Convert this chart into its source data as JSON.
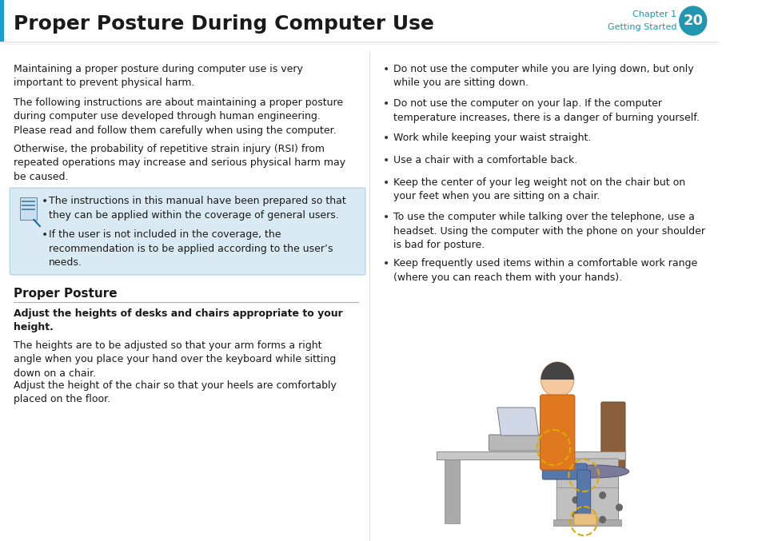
{
  "title": "Proper Posture During Computer Use",
  "chapter_label": "Chapter 1",
  "chapter_sub": "Getting Started",
  "chapter_num": "20",
  "header_bar_color": "#2196b0",
  "header_bg": "#ffffff",
  "left_blue_bar_color": "#1a9fd4",
  "page_bg": "#ffffff",
  "body_text_color": "#1a1a1a",
  "bullet_color": "#333333",
  "note_bg_color": "#daeaf4",
  "note_border_color": "#b0cfe0",
  "proper_posture_color": "#000000",
  "underline_color": "#b0b0b0",
  "divider_color": "#cccccc",
  "left_para1": "Maintaining a proper posture during computer use is very\nimportant to prevent physical harm.",
  "left_para2": "The following instructions are about maintaining a proper posture\nduring computer use developed through human engineering.\nPlease read and follow them carefully when using the computer.",
  "left_para3": "Otherwise, the probability of repetitive strain injury (RSI) from\nrepeated operations may increase and serious physical harm may\nbe caused.",
  "note_bullet1": "The instructions in this manual have been prepared so that\nthey can be applied within the coverage of general users.",
  "note_bullet2": "If the user is not included in the coverage, the\nrecommendation is to be applied according to the user’s\nneeds.",
  "proper_posture_heading": "Proper Posture",
  "adjust_heading": "Adjust the heights of desks and chairs appropriate to your\nheight.",
  "left_para4": "The heights are to be adjusted so that your arm forms a right\nangle when you place your hand over the keyboard while sitting\ndown on a chair.",
  "left_para5": "Adjust the height of the chair so that your heels are comfortably\nplaced on the floor.",
  "right_bullets": [
    "Do not use the computer while you are lying down, but only\nwhile you are sitting down.",
    "Do not use the computer on your lap. If the computer\ntemperature increases, there is a danger of burning yourself.",
    "Work while keeping your waist straight.",
    "Use a chair with a comfortable back.",
    "Keep the center of your leg weight not on the chair but on\nyour feet when you are sitting on a chair.",
    "To use the computer while talking over the telephone, use a\nheadset. Using the computer with the phone on your shoulder\nis bad for posture.",
    "Keep frequently used items within a comfortable work range\n(where you can reach them with your hands)."
  ],
  "font_size_body": 9.0,
  "font_size_title": 18.0,
  "font_size_heading": 10.0,
  "shadow_color": "#cccccc"
}
